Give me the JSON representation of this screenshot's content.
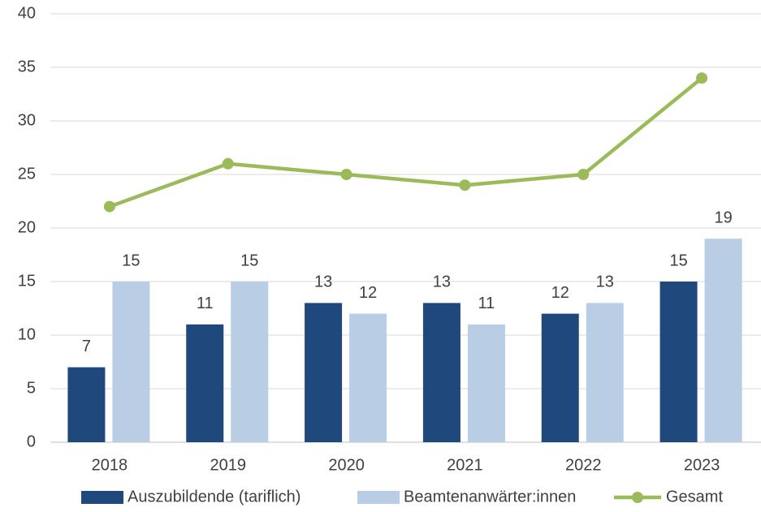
{
  "chart_data": {
    "type": "bar",
    "categories": [
      "2018",
      "2019",
      "2020",
      "2021",
      "2022",
      "2023"
    ],
    "series": [
      {
        "name": "Auszubildende (tariflich)",
        "color": "#1f497d",
        "values": [
          7,
          11,
          13,
          13,
          12,
          15
        ]
      },
      {
        "name": "Beamtenanwärter:innen",
        "color": "#b9cde5",
        "values": [
          15,
          15,
          12,
          11,
          13,
          19
        ]
      },
      {
        "name": "Gesamt",
        "color": "#9bbb59",
        "type": "line",
        "values": [
          22,
          26,
          25,
          24,
          25,
          34
        ]
      }
    ],
    "ylim": [
      0,
      40
    ],
    "yticks": [
      0,
      5,
      10,
      15,
      20,
      25,
      30,
      35,
      40
    ],
    "grid": true,
    "legend": "bottom"
  }
}
